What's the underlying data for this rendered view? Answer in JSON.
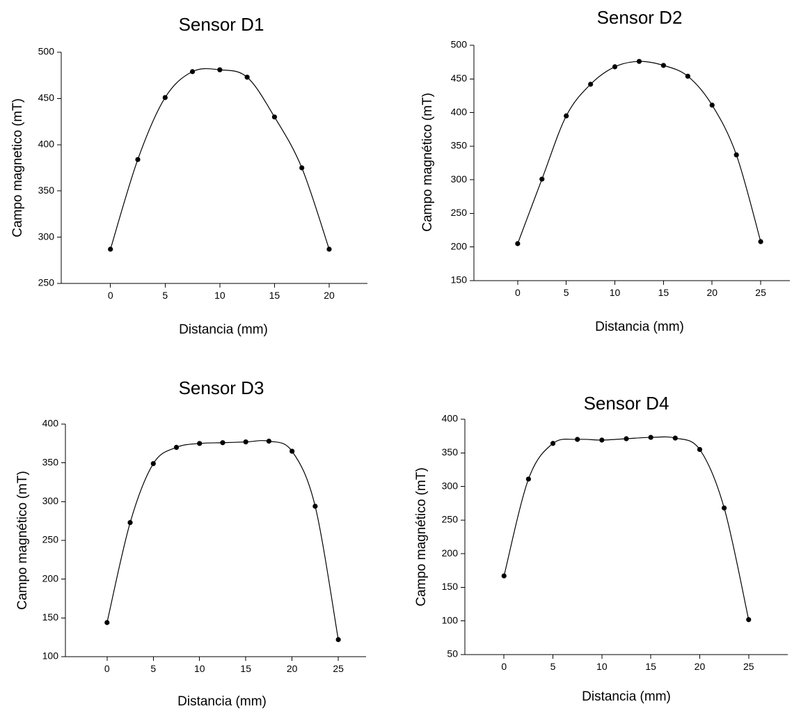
{
  "chart_data": [
    {
      "type": "line",
      "title": "Sensor D1",
      "xlabel": "Distancia (mm)",
      "ylabel": "Campo magnetico (mT)",
      "xlim": [
        -4.5,
        23.5
      ],
      "ylim": [
        250,
        500
      ],
      "xticks": [
        0,
        5,
        10,
        15,
        20
      ],
      "yticks": [
        250,
        300,
        350,
        400,
        450,
        500
      ],
      "grid": false,
      "series": [
        {
          "x": [
            0,
            2.5,
            5,
            7.5,
            10,
            12.5,
            15,
            17.5,
            20
          ],
          "y": [
            287,
            384,
            451,
            479,
            481,
            473,
            430,
            375,
            287
          ]
        }
      ]
    },
    {
      "type": "line",
      "title": "Sensor D2",
      "xlabel": "Distancia (mm)",
      "ylabel": "Campo magnético (mT)",
      "xlim": [
        -4.5,
        28
      ],
      "ylim": [
        150,
        500
      ],
      "xticks": [
        0,
        5,
        10,
        15,
        20,
        25
      ],
      "yticks": [
        150,
        200,
        250,
        300,
        350,
        400,
        450,
        500
      ],
      "grid": false,
      "series": [
        {
          "x": [
            0,
            2.5,
            5,
            7.5,
            10,
            12.5,
            15,
            17.5,
            20,
            22.5,
            25
          ],
          "y": [
            205,
            301,
            395,
            442,
            468,
            476,
            470,
            454,
            411,
            337,
            208
          ]
        }
      ]
    },
    {
      "type": "line",
      "title": "Sensor D3",
      "xlabel": "Distancia (mm)",
      "ylabel": "Campo magnético (mT)",
      "xlim": [
        -4.5,
        28
      ],
      "ylim": [
        100,
        400
      ],
      "xticks": [
        0,
        5,
        10,
        15,
        20,
        25
      ],
      "yticks": [
        100,
        150,
        200,
        250,
        300,
        350,
        400
      ],
      "grid": false,
      "series": [
        {
          "x": [
            0,
            2.5,
            5,
            7.5,
            10,
            12.5,
            15,
            17.5,
            20,
            22.5,
            25
          ],
          "y": [
            144,
            273,
            349,
            370,
            375,
            376,
            377,
            378,
            365,
            294,
            122
          ]
        }
      ]
    },
    {
      "type": "line",
      "title": "Sensor D4",
      "xlabel": "Distancia (mm)",
      "ylabel": "Campo magnético (mT)",
      "xlim": [
        -4,
        29
      ],
      "ylim": [
        50,
        400
      ],
      "xticks": [
        0,
        5,
        10,
        15,
        20,
        25
      ],
      "yticks": [
        50,
        100,
        150,
        200,
        250,
        300,
        350,
        400
      ],
      "grid": false,
      "series": [
        {
          "x": [
            0,
            2.5,
            5,
            7.5,
            10,
            12.5,
            15,
            17.5,
            20,
            22.5,
            25
          ],
          "y": [
            167,
            311,
            364,
            370,
            369,
            371,
            373,
            372,
            355,
            268,
            102
          ]
        }
      ]
    }
  ]
}
